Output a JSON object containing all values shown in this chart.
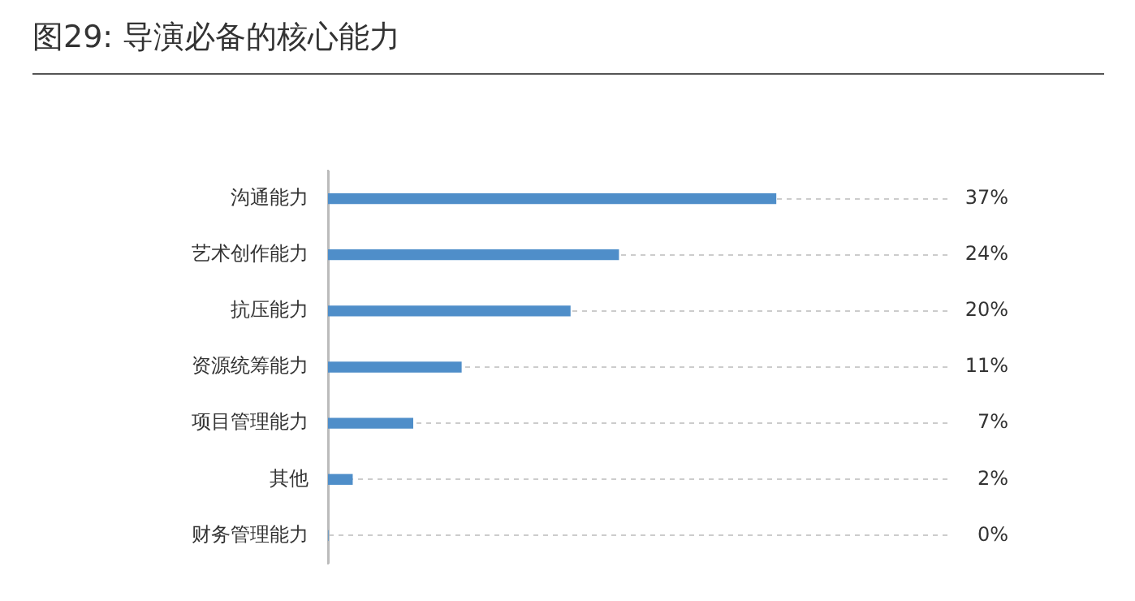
{
  "chart_data": {
    "type": "bar",
    "title": "图29: 导演必备的核心能力",
    "orientation": "horizontal",
    "categories": [
      "沟通能力",
      "艺术创作能力",
      "抗压能力",
      "资源统筹能力",
      "项目管理能力",
      "其他",
      "财务管理能力"
    ],
    "values": [
      37,
      24,
      20,
      11,
      7,
      2,
      0
    ],
    "value_labels": [
      "37%",
      "24%",
      "20%",
      "11%",
      "7%",
      "2%",
      "0%"
    ],
    "color": "#4f8ec9",
    "grid": "y",
    "tick_labels": "y"
  }
}
